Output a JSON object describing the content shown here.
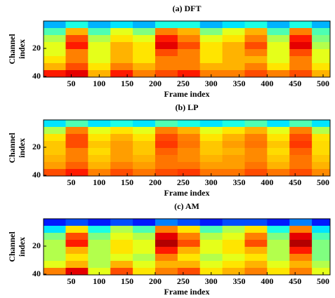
{
  "chart_data": [
    {
      "type": "heatmap",
      "title": "(a) DFT",
      "xlabel": "Frame index",
      "ylabel": [
        "Channel",
        "index"
      ],
      "colormap": "jet",
      "x": [
        20,
        60,
        100,
        140,
        180,
        220,
        260,
        300,
        340,
        380,
        420,
        460,
        500
      ],
      "y": [
        3,
        8,
        13,
        18,
        23,
        28,
        33,
        38
      ],
      "z": [
        [
          0.3,
          0.4,
          0.3,
          0.35,
          0.3,
          0.4,
          0.4,
          0.3,
          0.35,
          0.4,
          0.3,
          0.4,
          0.3
        ],
        [
          0.45,
          0.7,
          0.45,
          0.6,
          0.5,
          0.75,
          0.7,
          0.5,
          0.6,
          0.7,
          0.45,
          0.75,
          0.45
        ],
        [
          0.55,
          0.8,
          0.55,
          0.65,
          0.6,
          0.85,
          0.75,
          0.6,
          0.65,
          0.75,
          0.55,
          0.85,
          0.5
        ],
        [
          0.6,
          0.85,
          0.6,
          0.7,
          0.65,
          0.9,
          0.8,
          0.65,
          0.7,
          0.8,
          0.6,
          0.9,
          0.55
        ],
        [
          0.6,
          0.75,
          0.6,
          0.7,
          0.65,
          0.8,
          0.75,
          0.65,
          0.7,
          0.75,
          0.6,
          0.8,
          0.6
        ],
        [
          0.65,
          0.75,
          0.6,
          0.7,
          0.65,
          0.75,
          0.75,
          0.65,
          0.7,
          0.7,
          0.6,
          0.75,
          0.6
        ],
        [
          0.7,
          0.8,
          0.65,
          0.75,
          0.7,
          0.75,
          0.75,
          0.7,
          0.7,
          0.75,
          0.65,
          0.75,
          0.65
        ],
        [
          0.85,
          0.9,
          0.7,
          0.85,
          0.75,
          0.8,
          0.85,
          0.75,
          0.75,
          0.8,
          0.75,
          0.8,
          0.7
        ]
      ],
      "xlim": [
        0.5,
        512.5
      ],
      "xticks": [
        50,
        100,
        150,
        200,
        250,
        300,
        350,
        400,
        450,
        500
      ],
      "ylim": [
        0.5,
        40.5
      ],
      "yticks": [
        20,
        40
      ],
      "y_inverted": true
    },
    {
      "type": "heatmap",
      "title": "(b) LP",
      "xlabel": "Frame index",
      "ylabel": [
        "Channel",
        "index"
      ],
      "colormap": "jet",
      "x": [
        20,
        60,
        100,
        140,
        180,
        220,
        260,
        300,
        340,
        380,
        420,
        460,
        500
      ],
      "y": [
        3,
        8,
        13,
        18,
        23,
        28,
        33,
        38
      ],
      "z": [
        [
          0.35,
          0.45,
          0.35,
          0.4,
          0.35,
          0.45,
          0.4,
          0.35,
          0.4,
          0.45,
          0.35,
          0.45,
          0.35
        ],
        [
          0.55,
          0.75,
          0.6,
          0.65,
          0.6,
          0.75,
          0.7,
          0.6,
          0.65,
          0.7,
          0.6,
          0.75,
          0.55
        ],
        [
          0.65,
          0.8,
          0.65,
          0.7,
          0.65,
          0.8,
          0.75,
          0.65,
          0.7,
          0.75,
          0.65,
          0.8,
          0.65
        ],
        [
          0.68,
          0.8,
          0.68,
          0.72,
          0.68,
          0.82,
          0.76,
          0.68,
          0.72,
          0.76,
          0.68,
          0.82,
          0.66
        ],
        [
          0.68,
          0.75,
          0.66,
          0.72,
          0.68,
          0.78,
          0.74,
          0.68,
          0.7,
          0.74,
          0.66,
          0.78,
          0.66
        ],
        [
          0.7,
          0.75,
          0.68,
          0.72,
          0.7,
          0.76,
          0.74,
          0.7,
          0.72,
          0.74,
          0.68,
          0.76,
          0.68
        ],
        [
          0.72,
          0.78,
          0.7,
          0.75,
          0.72,
          0.76,
          0.76,
          0.72,
          0.72,
          0.76,
          0.7,
          0.76,
          0.7
        ],
        [
          0.8,
          0.85,
          0.75,
          0.8,
          0.76,
          0.8,
          0.82,
          0.76,
          0.76,
          0.8,
          0.76,
          0.8,
          0.74
        ]
      ],
      "xlim": [
        0.5,
        512.5
      ],
      "xticks": [
        50,
        100,
        150,
        200,
        250,
        300,
        350,
        400,
        450,
        500
      ],
      "ylim": [
        0.5,
        40.5
      ],
      "yticks": [
        20,
        40
      ],
      "y_inverted": true
    },
    {
      "type": "heatmap",
      "title": "(c) AM",
      "xlabel": "Frame index",
      "ylabel": [
        "Channel",
        "index"
      ],
      "colormap": "jet",
      "x": [
        20,
        60,
        100,
        140,
        180,
        220,
        260,
        300,
        340,
        380,
        420,
        460,
        500
      ],
      "y": [
        3,
        8,
        13,
        18,
        23,
        28,
        33,
        38
      ],
      "z": [
        [
          0.15,
          0.2,
          0.15,
          0.2,
          0.15,
          0.25,
          0.2,
          0.15,
          0.2,
          0.2,
          0.15,
          0.25,
          0.15
        ],
        [
          0.35,
          0.65,
          0.4,
          0.55,
          0.45,
          0.75,
          0.65,
          0.45,
          0.55,
          0.65,
          0.4,
          0.75,
          0.35
        ],
        [
          0.5,
          0.8,
          0.5,
          0.6,
          0.55,
          0.9,
          0.75,
          0.55,
          0.6,
          0.75,
          0.5,
          0.9,
          0.45
        ],
        [
          0.55,
          0.85,
          0.55,
          0.65,
          0.6,
          0.95,
          0.8,
          0.6,
          0.65,
          0.8,
          0.55,
          0.95,
          0.5
        ],
        [
          0.55,
          0.7,
          0.55,
          0.65,
          0.6,
          0.85,
          0.7,
          0.6,
          0.65,
          0.7,
          0.55,
          0.85,
          0.5
        ],
        [
          0.55,
          0.65,
          0.55,
          0.6,
          0.55,
          0.75,
          0.65,
          0.55,
          0.6,
          0.65,
          0.55,
          0.75,
          0.5
        ],
        [
          0.6,
          0.7,
          0.55,
          0.7,
          0.6,
          0.7,
          0.7,
          0.6,
          0.65,
          0.7,
          0.6,
          0.7,
          0.55
        ],
        [
          0.75,
          0.9,
          0.6,
          0.8,
          0.65,
          0.75,
          0.8,
          0.65,
          0.7,
          0.75,
          0.65,
          0.75,
          0.6
        ]
      ],
      "xlim": [
        0.5,
        512.5
      ],
      "xticks": [
        50,
        100,
        150,
        200,
        250,
        300,
        350,
        400,
        450,
        500
      ],
      "ylim": [
        0.5,
        40.5
      ],
      "yticks": [
        20,
        40
      ],
      "y_inverted": true
    }
  ]
}
